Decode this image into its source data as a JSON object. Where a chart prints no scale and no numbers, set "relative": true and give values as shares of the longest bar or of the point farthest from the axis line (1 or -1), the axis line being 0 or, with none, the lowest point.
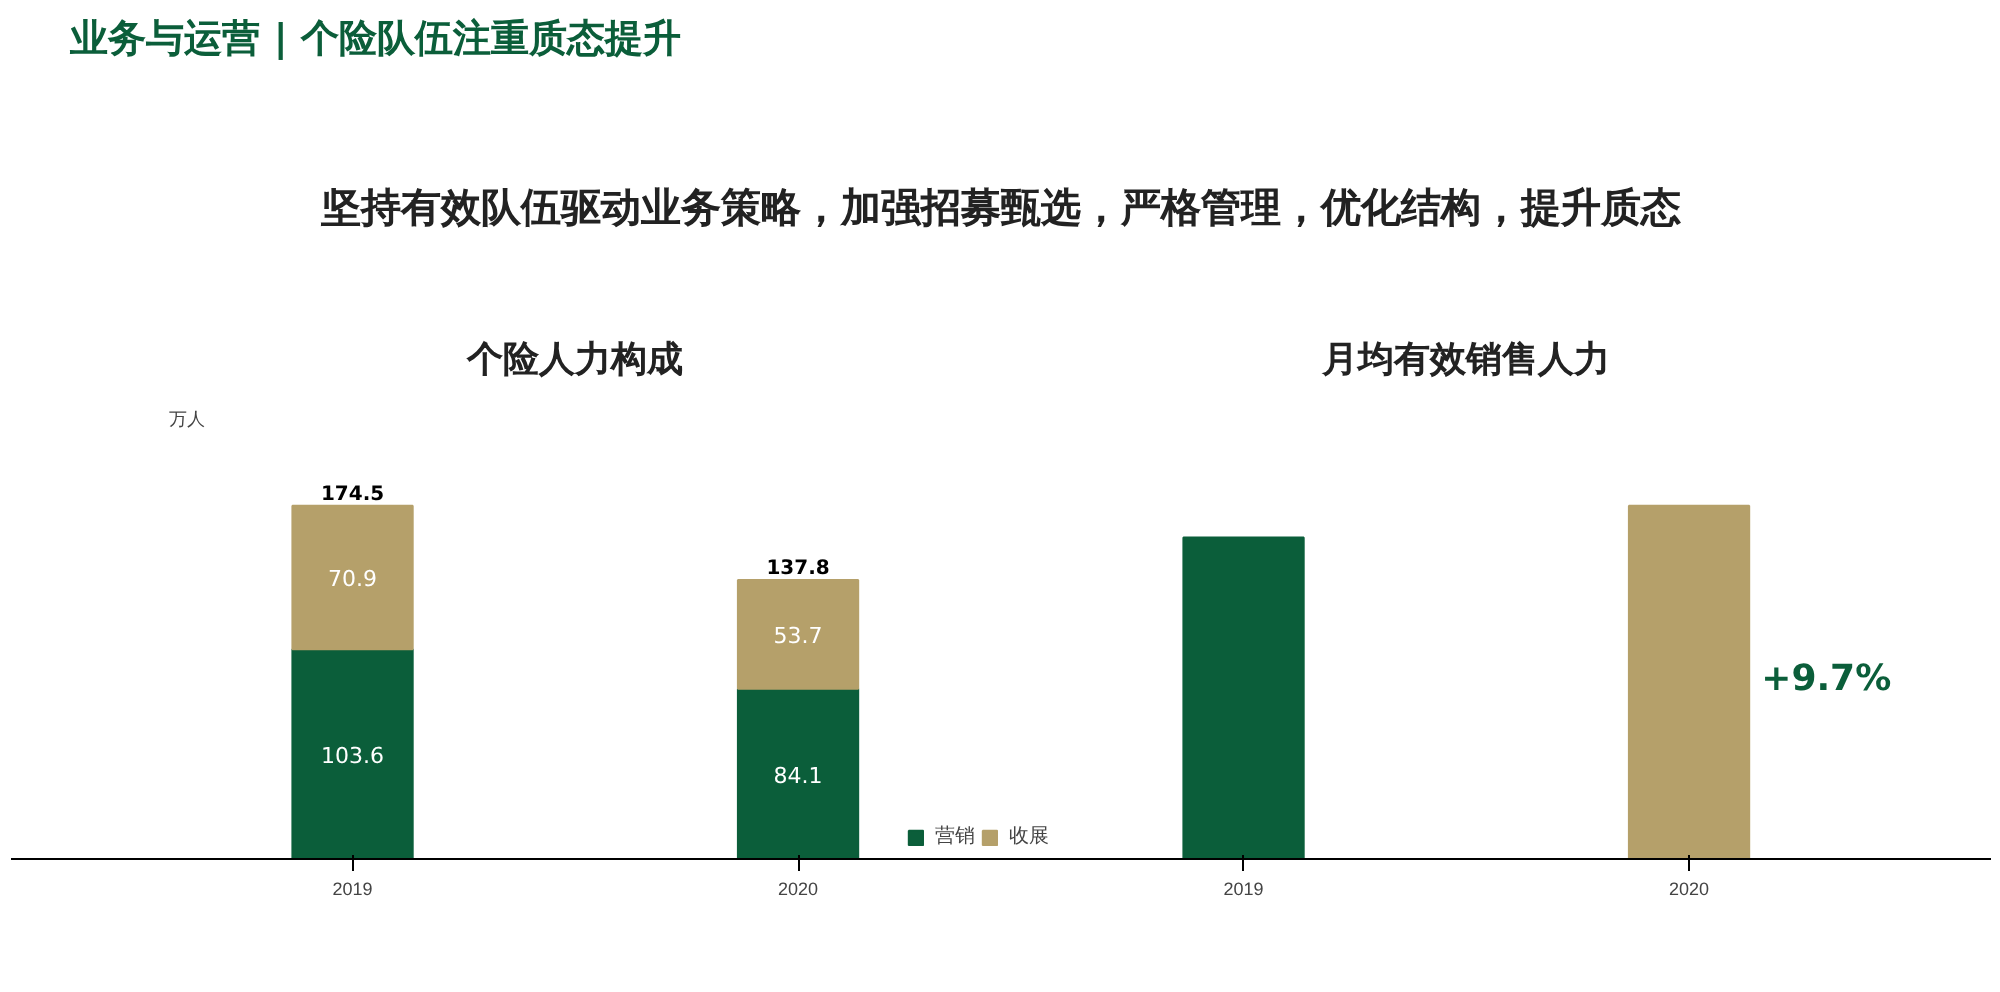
{
  "chart_data": [
    {
      "type": "bar",
      "title": "个险人力构成",
      "ylabel": "万人",
      "categories": [
        "2019",
        "2020"
      ],
      "stacked": true,
      "data_labels": true,
      "totals": [
        "174.5",
        "137.8"
      ],
      "legend": "bottom",
      "grid": false,
      "series": [
        {
          "name": "营销",
          "color": "#0b5e3a",
          "values": [
            103.6,
            84.1
          ]
        },
        {
          "name": "收展",
          "color": "#b5a06a",
          "values": [
            70.9,
            53.7
          ]
        }
      ],
      "annotations": [
        "业务与运营 | 个险队伍注重质态提升",
        "坚持有效队伍驱动业务策略，加强招募甄选，严格管理，优化结构，提升质态"
      ]
    },
    {
      "type": "bar",
      "title": "月均有效销售人力",
      "categories": [
        "2019",
        "2020"
      ],
      "relative": true,
      "grid": false,
      "values": [
        0.91,
        1
      ],
      "colors": [
        "#0b5e3a",
        "#b5a06a"
      ],
      "annotations": [
        "+9.7%"
      ]
    }
  ]
}
